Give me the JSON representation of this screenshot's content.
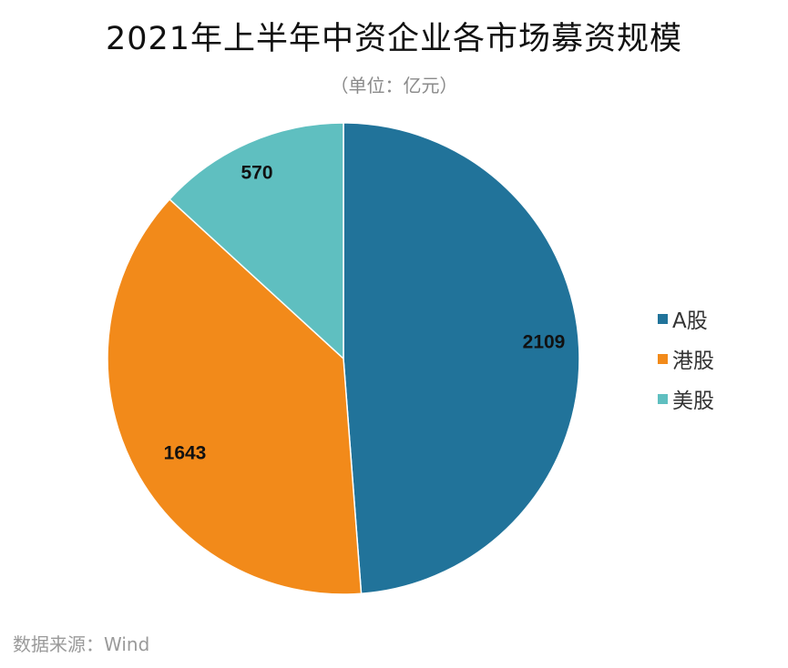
{
  "chart_data": {
    "type": "pie",
    "title": "2021年上半年中资企业各市场募资规模",
    "subtitle": "（单位：亿元）",
    "categories": [
      "A股",
      "港股",
      "美股"
    ],
    "values": [
      2109,
      1643,
      570
    ],
    "data_labels": [
      "2109",
      "1643",
      "570"
    ],
    "colors": [
      "#21739a",
      "#f28a1a",
      "#5fbfc0"
    ],
    "start_angle_deg": 0,
    "direction": "clockwise",
    "legend_position": "right",
    "slice_border_color": "#ffffff"
  },
  "source": "数据来源：Wind"
}
